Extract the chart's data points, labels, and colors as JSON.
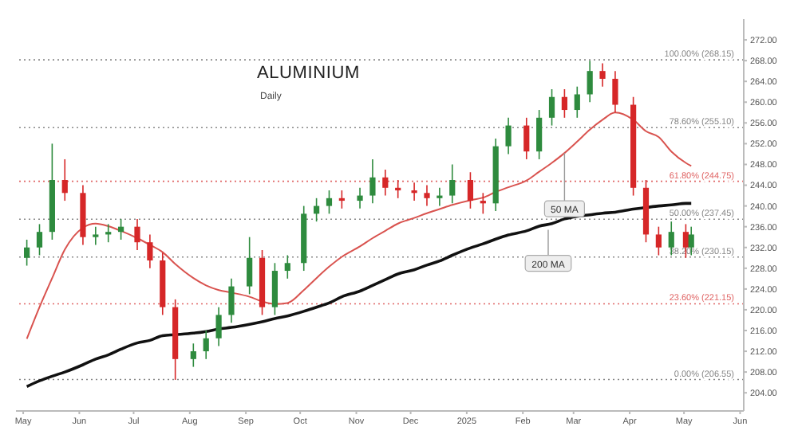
{
  "chart_data": {
    "type": "candlestick",
    "title": "ALUMINIUM",
    "subtitle": "Daily",
    "x": [
      "2024-05-03",
      "2024-05-10",
      "2024-05-17",
      "2024-05-24",
      "2024-06-03",
      "2024-06-10",
      "2024-06-17",
      "2024-06-24",
      "2024-07-03",
      "2024-07-10",
      "2024-07-17",
      "2024-07-24",
      "2024-08-03",
      "2024-08-10",
      "2024-08-17",
      "2024-08-24",
      "2024-09-03",
      "2024-09-10",
      "2024-09-17",
      "2024-09-24",
      "2024-10-03",
      "2024-10-10",
      "2024-10-17",
      "2024-10-24",
      "2024-11-03",
      "2024-11-10",
      "2024-11-17",
      "2024-11-24",
      "2024-12-03",
      "2024-12-10",
      "2024-12-17",
      "2024-12-24",
      "2025-01-03",
      "2025-01-10",
      "2025-01-17",
      "2025-01-24",
      "2025-02-03",
      "2025-02-10",
      "2025-02-17",
      "2025-02-24",
      "2025-03-03",
      "2025-03-10",
      "2025-03-17",
      "2025-03-24",
      "2025-04-03",
      "2025-04-10",
      "2025-04-17",
      "2025-04-24",
      "2025-05-02",
      "2025-05-05"
    ],
    "ohlc": [
      [
        230,
        233.5,
        228.5,
        232
      ],
      [
        232,
        236.5,
        230.5,
        235
      ],
      [
        235,
        252,
        233.5,
        245
      ],
      [
        245,
        249,
        241,
        242.5
      ],
      [
        242.5,
        244,
        232.5,
        234
      ],
      [
        234,
        236,
        232.5,
        234.5
      ],
      [
        234.5,
        236.5,
        233,
        235
      ],
      [
        235,
        237.5,
        233.5,
        236
      ],
      [
        236,
        237.5,
        231.5,
        233
      ],
      [
        233,
        234.5,
        228,
        229.5
      ],
      [
        229.5,
        231,
        219,
        220.5
      ],
      [
        220.5,
        222,
        206.5,
        210.5
      ],
      [
        210.5,
        213.5,
        209,
        212
      ],
      [
        212,
        216,
        210.5,
        214.5
      ],
      [
        214.5,
        220.5,
        213,
        219
      ],
      [
        219,
        226,
        217.5,
        224.5
      ],
      [
        224.5,
        234,
        223,
        230
      ],
      [
        230,
        231.5,
        219,
        220.5
      ],
      [
        220.5,
        229,
        219,
        227.5
      ],
      [
        227.5,
        230.5,
        226,
        229
      ],
      [
        229,
        240,
        227.5,
        238.5
      ],
      [
        238.5,
        241.5,
        237,
        240
      ],
      [
        240,
        243,
        238.5,
        241.5
      ],
      [
        241.5,
        243,
        239.5,
        241
      ],
      [
        241,
        243.5,
        239.5,
        242
      ],
      [
        242,
        249,
        240.5,
        245.5
      ],
      [
        245.5,
        247,
        242,
        243.5
      ],
      [
        243.5,
        245,
        241.5,
        243
      ],
      [
        243,
        244.5,
        241,
        242.5
      ],
      [
        242.5,
        244,
        240,
        241.5
      ],
      [
        241.5,
        243.5,
        240,
        242
      ],
      [
        242,
        248,
        240.5,
        245
      ],
      [
        245,
        246.5,
        239.5,
        241
      ],
      [
        241,
        242.5,
        238.5,
        240.5
      ],
      [
        240.5,
        253,
        239,
        251.5
      ],
      [
        251.5,
        257,
        250,
        255.5
      ],
      [
        255.5,
        257,
        249,
        250.5
      ],
      [
        250.5,
        258.5,
        249,
        257
      ],
      [
        257,
        262.5,
        255.5,
        261
      ],
      [
        261,
        262.5,
        257,
        258.5
      ],
      [
        258.5,
        263,
        257,
        261.5
      ],
      [
        261.5,
        268,
        260,
        266
      ],
      [
        266,
        267.5,
        263,
        264.5
      ],
      [
        264.5,
        266,
        258,
        259.5
      ],
      [
        259.5,
        261,
        242,
        243.5
      ],
      [
        243.5,
        245,
        233,
        234.5
      ],
      [
        234.5,
        236,
        230.5,
        232
      ],
      [
        232,
        237,
        230.5,
        235
      ],
      [
        235,
        236.5,
        230,
        232
      ],
      [
        232,
        236,
        230.5,
        234.5
      ]
    ],
    "colors": [
      "#2e8b3e",
      "#2e8b3e",
      "#2e8b3e",
      "#d62728",
      "#d62728",
      "#2e8b3e",
      "#2e8b3e",
      "#2e8b3e",
      "#d62728",
      "#d62728",
      "#d62728",
      "#d62728",
      "#2e8b3e",
      "#2e8b3e",
      "#2e8b3e",
      "#2e8b3e",
      "#2e8b3e",
      "#d62728",
      "#2e8b3e",
      "#2e8b3e",
      "#2e8b3e",
      "#2e8b3e",
      "#2e8b3e",
      "#d62728",
      "#2e8b3e",
      "#2e8b3e",
      "#d62728",
      "#d62728",
      "#d62728",
      "#d62728",
      "#2e8b3e",
      "#2e8b3e",
      "#d62728",
      "#d62728",
      "#2e8b3e",
      "#2e8b3e",
      "#d62728",
      "#2e8b3e",
      "#2e8b3e",
      "#d62728",
      "#2e8b3e",
      "#2e8b3e",
      "#d62728",
      "#d62728",
      "#d62728",
      "#d62728",
      "#d62728",
      "#2e8b3e",
      "#d62728",
      "#2e8b3e"
    ],
    "series": [
      {
        "type": "line",
        "color": "#d9534f",
        "values": [
          214.4,
          220.5,
          226.1,
          231.6,
          235.8,
          236.6,
          236.1,
          235.2,
          233.8,
          232.5,
          231.1,
          228.8,
          226.1,
          224.7,
          223.8,
          223.3,
          222.5,
          221.6,
          221.1,
          221.3,
          223.8,
          226.1,
          228.3,
          230.2,
          232.2,
          233.8,
          235.2,
          236.6,
          237.7,
          238.6,
          239.4,
          240.2,
          241.1,
          241.6,
          242.7,
          243.6,
          244.9,
          246.6,
          248.3,
          250.2,
          252.4,
          254.7,
          256.6,
          258.0,
          256.6,
          254.4,
          253.3,
          250.5,
          248.3,
          247.7
        ]
      },
      {
        "type": "line",
        "color": "#111111",
        "values": [
          205.2,
          206.3,
          207.2,
          208.0,
          209.4,
          210.5,
          211.3,
          212.4,
          213.6,
          214.1,
          215.0,
          215.2,
          215.5,
          215.8,
          216.3,
          216.6,
          217.2,
          217.7,
          218.3,
          218.8,
          219.7,
          220.5,
          221.3,
          222.5,
          223.6,
          224.7,
          225.8,
          226.9,
          227.7,
          228.6,
          229.4,
          230.5,
          231.9,
          232.7,
          233.6,
          234.4,
          235.2,
          236.1,
          236.6,
          237.5,
          238.0,
          238.3,
          238.6,
          238.8,
          239.4,
          239.7,
          240.0,
          240.2,
          240.5,
          240.5
        ]
      }
    ],
    "xlim": [
      "2024-04-27",
      "2025-06-03"
    ],
    "xticks": [
      {
        "value": "2024-05-01",
        "label": "May"
      },
      {
        "value": "2024-06-01",
        "label": "Jun"
      },
      {
        "value": "2024-07-01",
        "label": "Jul"
      },
      {
        "value": "2024-08-01",
        "label": "Aug"
      },
      {
        "value": "2024-09-01",
        "label": "Sep"
      },
      {
        "value": "2024-10-01",
        "label": "Oct"
      },
      {
        "value": "2024-11-01",
        "label": "Nov"
      },
      {
        "value": "2024-12-01",
        "label": "Dec"
      },
      {
        "value": "2025-01-01",
        "label": "2025"
      },
      {
        "value": "2025-02-01",
        "label": "Feb"
      },
      {
        "value": "2025-03-01",
        "label": "Mar"
      },
      {
        "value": "2025-04-01",
        "label": "Apr"
      },
      {
        "value": "2025-05-01",
        "label": "May"
      },
      {
        "value": "2025-06-01",
        "label": "Jun"
      }
    ],
    "ylim": [
      200.5,
      276
    ],
    "yticks": [
      {
        "value": 204,
        "label": "204.00"
      },
      {
        "value": 208,
        "label": "208.00"
      },
      {
        "value": 212,
        "label": "212.00"
      },
      {
        "value": 216,
        "label": "216.00"
      },
      {
        "value": 220,
        "label": "220.00"
      },
      {
        "value": 224,
        "label": "224.00"
      },
      {
        "value": 228,
        "label": "228.00"
      },
      {
        "value": 232,
        "label": "232.00"
      },
      {
        "value": 236,
        "label": "236.00"
      },
      {
        "value": 240,
        "label": "240.00"
      },
      {
        "value": 244,
        "label": "244.00"
      },
      {
        "value": 248,
        "label": "248.00"
      },
      {
        "value": 252,
        "label": "252.00"
      },
      {
        "value": 256,
        "label": "256.00"
      },
      {
        "value": 260,
        "label": "260.00"
      },
      {
        "value": 264,
        "label": "264.00"
      },
      {
        "value": 268,
        "label": "268.00"
      },
      {
        "value": 272,
        "label": "272.00"
      }
    ],
    "ref_lines": [
      {
        "axis": "y",
        "value": 268.15,
        "label": "100.00% (268.15)",
        "color": "#888888",
        "line_style": "dotted"
      },
      {
        "axis": "y",
        "value": 255.1,
        "label": "78.60% (255.10)",
        "color": "#888888",
        "line_style": "dotted"
      },
      {
        "axis": "y",
        "value": 244.75,
        "label": "61.80% (244.75)",
        "color": "#e06666",
        "line_style": "dotted"
      },
      {
        "axis": "y",
        "value": 237.45,
        "label": "50.00% (237.45)",
        "color": "#888888",
        "line_style": "dotted"
      },
      {
        "axis": "y",
        "value": 230.15,
        "label": "38.20% (230.15)",
        "color": "#888888",
        "line_style": "dotted"
      },
      {
        "axis": "y",
        "value": 221.15,
        "label": "23.60% (221.15)",
        "color": "#e06666",
        "line_style": "dotted"
      },
      {
        "axis": "y",
        "value": 206.55,
        "label": "0.00% (206.55)",
        "color": "#888888",
        "line_style": "dotted"
      }
    ],
    "annotations": [
      {
        "text": "50 MA",
        "x": "2025-02-24",
        "y": 250.2
      },
      {
        "text": "200 MA",
        "x": "2025-02-15",
        "y": 235.4
      }
    ],
    "grid": false,
    "legend": false,
    "marker": "none",
    "line_style": "solid"
  }
}
